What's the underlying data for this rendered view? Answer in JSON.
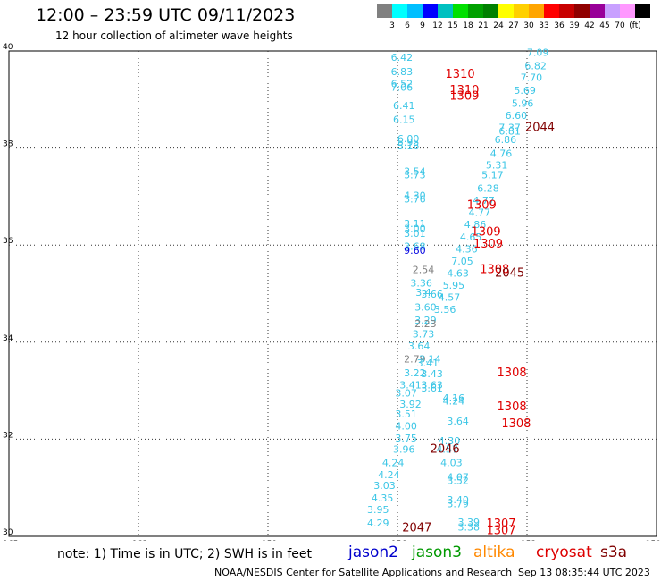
{
  "header": {
    "title": "12:00 – 23:59 UTC 09/11/2023",
    "subtitle": "12 hour collection of altimeter wave heights"
  },
  "color_scale": {
    "colors": [
      "#808080",
      "#00ffff",
      "#00bfff",
      "#0000ff",
      "#00c0c0",
      "#00e000",
      "#00a000",
      "#008000",
      "#ffff00",
      "#ffd000",
      "#ffa500",
      "#ff0000",
      "#c80000",
      "#900000",
      "#990099",
      "#c8a0ff",
      "#ff99ff",
      "#000000"
    ],
    "labels": [
      "3",
      "6",
      "9",
      "12",
      "15",
      "18",
      "21",
      "24",
      "27",
      "30",
      "33",
      "36",
      "39",
      "42",
      "45",
      "70",
      "(ft)"
    ]
  },
  "map": {
    "lon_min": -165,
    "lon_max": -150,
    "lat_min": 30,
    "lat_max": 40,
    "lat_ticks": [
      "40",
      "38",
      "36",
      "34",
      "32",
      "30"
    ],
    "lon_ticks": [
      "-165",
      "-162",
      "-159",
      "-156",
      "-153",
      "-150"
    ],
    "observations": [
      {
        "lon": -155.9,
        "lat": 39.8,
        "text": "6.42",
        "color": "#3cc6e6"
      },
      {
        "lon": -155.9,
        "lat": 39.5,
        "text": "6.83",
        "color": "#3cc6e6"
      },
      {
        "lon": -155.9,
        "lat": 39.25,
        "text": "6.52",
        "color": "#3cc6e6"
      },
      {
        "lon": -155.9,
        "lat": 39.18,
        "text": "7.06",
        "color": "#3cc6e6"
      },
      {
        "lon": -155.85,
        "lat": 38.8,
        "text": "6.41",
        "color": "#3cc6e6"
      },
      {
        "lon": -155.85,
        "lat": 38.52,
        "text": "6.15",
        "color": "#3cc6e6"
      },
      {
        "lon": -155.75,
        "lat": 38.12,
        "text": "6.00",
        "color": "#3cc6e6"
      },
      {
        "lon": -155.75,
        "lat": 38.05,
        "text": "5.95",
        "color": "#3cc6e6"
      },
      {
        "lon": -155.75,
        "lat": 37.97,
        "text": "5.16",
        "color": "#3cc6e6"
      },
      {
        "lon": -155.6,
        "lat": 37.45,
        "text": "3.54",
        "color": "#3cc6e6"
      },
      {
        "lon": -155.6,
        "lat": 37.38,
        "text": "3.73",
        "color": "#3cc6e6"
      },
      {
        "lon": -155.6,
        "lat": 36.95,
        "text": "4.30",
        "color": "#3cc6e6"
      },
      {
        "lon": -155.6,
        "lat": 36.88,
        "text": "3.76",
        "color": "#3cc6e6"
      },
      {
        "lon": -155.6,
        "lat": 36.37,
        "text": "3.11",
        "color": "#3cc6e6"
      },
      {
        "lon": -155.6,
        "lat": 36.27,
        "text": "3.00",
        "color": "#3cc6e6"
      },
      {
        "lon": -155.6,
        "lat": 36.17,
        "text": "3.01",
        "color": "#3cc6e6"
      },
      {
        "lon": -155.6,
        "lat": 35.9,
        "text": "3.68",
        "color": "#3cc6e6"
      },
      {
        "lon": -155.6,
        "lat": 35.82,
        "text": "9.60",
        "color": "#0000e0"
      },
      {
        "lon": -155.4,
        "lat": 35.42,
        "text": "2.54",
        "color": "#808080"
      },
      {
        "lon": -155.45,
        "lat": 35.15,
        "text": "3.36",
        "color": "#3cc6e6"
      },
      {
        "lon": -155.4,
        "lat": 34.95,
        "text": "3.4",
        "color": "#3cc6e6"
      },
      {
        "lon": -155.2,
        "lat": 34.92,
        "text": "3.66",
        "color": "#3cc6e6"
      },
      {
        "lon": -155.35,
        "lat": 34.65,
        "text": "3.60",
        "color": "#3cc6e6"
      },
      {
        "lon": -155.35,
        "lat": 34.38,
        "text": "3.29",
        "color": "#3cc6e6"
      },
      {
        "lon": -155.35,
        "lat": 34.31,
        "text": "2.23",
        "color": "#808080"
      },
      {
        "lon": -155.4,
        "lat": 34.1,
        "text": "3.73",
        "color": "#3cc6e6"
      },
      {
        "lon": -155.5,
        "lat": 33.85,
        "text": "3.64",
        "color": "#3cc6e6"
      },
      {
        "lon": -155.6,
        "lat": 33.58,
        "text": "2.79",
        "color": "#808080"
      },
      {
        "lon": -155.25,
        "lat": 33.58,
        "text": "3.14",
        "color": "#3cc6e6"
      },
      {
        "lon": -155.3,
        "lat": 33.5,
        "text": "3.41",
        "color": "#3cc6e6"
      },
      {
        "lon": -155.6,
        "lat": 33.3,
        "text": "3.22",
        "color": "#3cc6e6"
      },
      {
        "lon": -155.2,
        "lat": 33.28,
        "text": "3.43",
        "color": "#3cc6e6"
      },
      {
        "lon": -155.7,
        "lat": 33.05,
        "text": "3.41",
        "color": "#3cc6e6"
      },
      {
        "lon": -155.2,
        "lat": 33.05,
        "text": "3.63",
        "color": "#3cc6e6"
      },
      {
        "lon": -155.2,
        "lat": 32.98,
        "text": "3.61",
        "color": "#3cc6e6"
      },
      {
        "lon": -155.8,
        "lat": 32.88,
        "text": "3.07",
        "color": "#3cc6e6"
      },
      {
        "lon": -154.7,
        "lat": 32.78,
        "text": "4.16",
        "color": "#3cc6e6"
      },
      {
        "lon": -154.7,
        "lat": 32.72,
        "text": "4.24",
        "color": "#3cc6e6"
      },
      {
        "lon": -155.7,
        "lat": 32.65,
        "text": "3.92",
        "color": "#3cc6e6"
      },
      {
        "lon": -155.8,
        "lat": 32.45,
        "text": "3.51",
        "color": "#3cc6e6"
      },
      {
        "lon": -154.6,
        "lat": 32.3,
        "text": "3.64",
        "color": "#3cc6e6"
      },
      {
        "lon": -155.8,
        "lat": 32.2,
        "text": "4.00",
        "color": "#3cc6e6"
      },
      {
        "lon": -155.8,
        "lat": 31.95,
        "text": "3.75",
        "color": "#3cc6e6"
      },
      {
        "lon": -154.8,
        "lat": 31.9,
        "text": "4.30",
        "color": "#3cc6e6"
      },
      {
        "lon": -155.85,
        "lat": 31.72,
        "text": "3.96",
        "color": "#3cc6e6"
      },
      {
        "lon": -154.85,
        "lat": 31.72,
        "text": "4.57",
        "color": "#3cc6e6"
      },
      {
        "lon": -156.1,
        "lat": 31.45,
        "text": "4.24",
        "color": "#3cc6e6"
      },
      {
        "lon": -154.75,
        "lat": 31.45,
        "text": "4.03",
        "color": "#3cc6e6"
      },
      {
        "lon": -156.2,
        "lat": 31.2,
        "text": "4.24",
        "color": "#3cc6e6"
      },
      {
        "lon": -154.6,
        "lat": 31.15,
        "text": "4.07",
        "color": "#3cc6e6"
      },
      {
        "lon": -154.6,
        "lat": 31.08,
        "text": "3.52",
        "color": "#3cc6e6"
      },
      {
        "lon": -156.3,
        "lat": 30.98,
        "text": "3.03",
        "color": "#3cc6e6"
      },
      {
        "lon": -154.6,
        "lat": 30.68,
        "text": "3.40",
        "color": "#3cc6e6"
      },
      {
        "lon": -154.6,
        "lat": 30.6,
        "text": "3.79",
        "color": "#3cc6e6"
      },
      {
        "lon": -156.35,
        "lat": 30.72,
        "text": "4.35",
        "color": "#3cc6e6"
      },
      {
        "lon": -156.45,
        "lat": 30.48,
        "text": "3.95",
        "color": "#3cc6e6"
      },
      {
        "lon": -156.45,
        "lat": 30.2,
        "text": "4.29",
        "color": "#3cc6e6"
      },
      {
        "lon": -154.35,
        "lat": 30.22,
        "text": "3.39",
        "color": "#3cc6e6"
      },
      {
        "lon": -154.35,
        "lat": 30.12,
        "text": "3.38",
        "color": "#3cc6e6"
      },
      {
        "lon": -152.75,
        "lat": 39.9,
        "text": "7.09",
        "color": "#3cc6e6"
      },
      {
        "lon": -152.8,
        "lat": 39.62,
        "text": "6.82",
        "color": "#3cc6e6"
      },
      {
        "lon": -152.9,
        "lat": 39.38,
        "text": "7.70",
        "color": "#3cc6e6"
      },
      {
        "lon": -153.05,
        "lat": 39.12,
        "text": "5.69",
        "color": "#3cc6e6"
      },
      {
        "lon": -153.1,
        "lat": 38.85,
        "text": "5.96",
        "color": "#3cc6e6"
      },
      {
        "lon": -153.25,
        "lat": 38.6,
        "text": "6.60",
        "color": "#3cc6e6"
      },
      {
        "lon": -153.4,
        "lat": 38.35,
        "text": "7.37",
        "color": "#3cc6e6"
      },
      {
        "lon": -153.4,
        "lat": 38.28,
        "text": "6.81",
        "color": "#3cc6e6"
      },
      {
        "lon": -153.5,
        "lat": 38.1,
        "text": "6.86",
        "color": "#3cc6e6"
      },
      {
        "lon": -153.6,
        "lat": 37.82,
        "text": "4.76",
        "color": "#3cc6e6"
      },
      {
        "lon": -153.7,
        "lat": 37.58,
        "text": "5.31",
        "color": "#3cc6e6"
      },
      {
        "lon": -153.8,
        "lat": 37.38,
        "text": "5.17",
        "color": "#3cc6e6"
      },
      {
        "lon": -153.9,
        "lat": 37.1,
        "text": "6.28",
        "color": "#3cc6e6"
      },
      {
        "lon": -154.0,
        "lat": 36.85,
        "text": "4.77",
        "color": "#3cc6e6"
      },
      {
        "lon": -154.1,
        "lat": 36.6,
        "text": "4.77",
        "color": "#3cc6e6"
      },
      {
        "lon": -154.2,
        "lat": 36.35,
        "text": "4.86",
        "color": "#3cc6e6"
      },
      {
        "lon": -154.3,
        "lat": 36.1,
        "text": "4.65",
        "color": "#3cc6e6"
      },
      {
        "lon": -154.4,
        "lat": 35.85,
        "text": "4.36",
        "color": "#3cc6e6"
      },
      {
        "lon": -154.5,
        "lat": 35.6,
        "text": "7.05",
        "color": "#3cc6e6"
      },
      {
        "lon": -154.6,
        "lat": 35.35,
        "text": "4.63",
        "color": "#3cc6e6"
      },
      {
        "lon": -154.7,
        "lat": 35.1,
        "text": "5.95",
        "color": "#3cc6e6"
      },
      {
        "lon": -154.8,
        "lat": 34.85,
        "text": "4.57",
        "color": "#3cc6e6"
      },
      {
        "lon": -154.9,
        "lat": 34.6,
        "text": "3.56",
        "color": "#3cc6e6"
      }
    ],
    "passes": [
      {
        "lon": -154.55,
        "lat": 39.45,
        "text": "1310",
        "color": "#e00000"
      },
      {
        "lon": -154.45,
        "lat": 39.12,
        "text": "1310",
        "color": "#e00000"
      },
      {
        "lon": -154.45,
        "lat": 39.0,
        "text": "1309",
        "color": "#e00000"
      },
      {
        "lon": -152.7,
        "lat": 38.35,
        "text": "2044",
        "color": "#800000"
      },
      {
        "lon": -154.05,
        "lat": 36.75,
        "text": "1309",
        "color": "#e00000"
      },
      {
        "lon": -153.95,
        "lat": 36.2,
        "text": "1309",
        "color": "#e00000"
      },
      {
        "lon": -153.9,
        "lat": 35.95,
        "text": "1309",
        "color": "#e00000"
      },
      {
        "lon": -153.75,
        "lat": 35.42,
        "text": "1308",
        "color": "#e00000"
      },
      {
        "lon": -153.4,
        "lat": 35.35,
        "text": "2045",
        "color": "#800000"
      },
      {
        "lon": -153.35,
        "lat": 33.3,
        "text": "1308",
        "color": "#e00000"
      },
      {
        "lon": -153.35,
        "lat": 32.6,
        "text": "1308",
        "color": "#e00000"
      },
      {
        "lon": -153.25,
        "lat": 32.25,
        "text": "1308",
        "color": "#e00000"
      },
      {
        "lon": -154.9,
        "lat": 31.72,
        "text": "2046",
        "color": "#800000"
      },
      {
        "lon": -155.55,
        "lat": 30.1,
        "text": "2047",
        "color": "#800000"
      },
      {
        "lon": -153.6,
        "lat": 30.18,
        "text": "1307",
        "color": "#e00000"
      },
      {
        "lon": -153.6,
        "lat": 30.05,
        "text": "1307",
        "color": "#e00000"
      }
    ]
  },
  "legend": {
    "note": "note:  1) Time is in UTC;  2) SWH is in feet",
    "missions": [
      {
        "name": "jason2",
        "color": "#0000cc"
      },
      {
        "name": "jason3",
        "color": "#009900"
      },
      {
        "name": "altika",
        "color": "#ff8800"
      },
      {
        "name": "cryosat",
        "color": "#dd0000"
      },
      {
        "name": "s3a",
        "color": "#800000"
      }
    ]
  },
  "footer": {
    "credit": "NOAA/NESDIS Center for Satellite Applications and Research",
    "timestamp": "Sep 13 08:35:44 UTC 2023"
  }
}
